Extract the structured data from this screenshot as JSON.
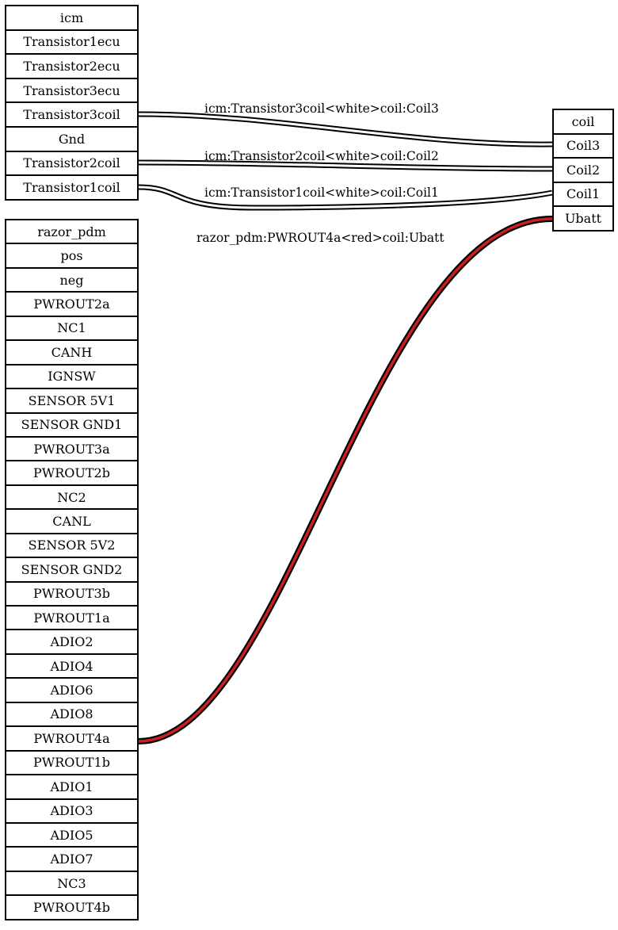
{
  "icm": {
    "title": "icm",
    "pins": [
      "Transistor1ecu",
      "Transistor2ecu",
      "Transistor3ecu",
      "Transistor3coil",
      "Gnd",
      "Transistor2coil",
      "Transistor1coil"
    ]
  },
  "razor_pdm": {
    "title": "razor_pdm",
    "pins": [
      "pos",
      "neg",
      "PWROUT2a",
      "NC1",
      "CANH",
      "IGNSW",
      "SENSOR 5V1",
      "SENSOR GND1",
      "PWROUT3a",
      "PWROUT2b",
      "NC2",
      "CANL",
      "SENSOR 5V2",
      "SENSOR GND2",
      "PWROUT3b",
      "PWROUT1a",
      "ADIO2",
      "ADIO4",
      "ADIO6",
      "ADIO8",
      "PWROUT4a",
      "PWROUT1b",
      "ADIO1",
      "ADIO3",
      "ADIO5",
      "ADIO7",
      "NC3",
      "PWROUT4b"
    ]
  },
  "coil": {
    "title": "coil",
    "pins": [
      "Coil3",
      "Coil2",
      "Coil1",
      "Ubatt"
    ]
  },
  "edges": [
    {
      "label": "icm:Transistor3coil<white>coil:Coil3",
      "color": "#ffffff"
    },
    {
      "label": "icm:Transistor2coil<white>coil:Coil2",
      "color": "#ffffff"
    },
    {
      "label": "icm:Transistor1coil<white>coil:Coil1",
      "color": "#ffffff"
    },
    {
      "label": "razor_pdm:PWROUT4a<red>coil:Ubatt",
      "color": "#cc1f1f"
    }
  ]
}
